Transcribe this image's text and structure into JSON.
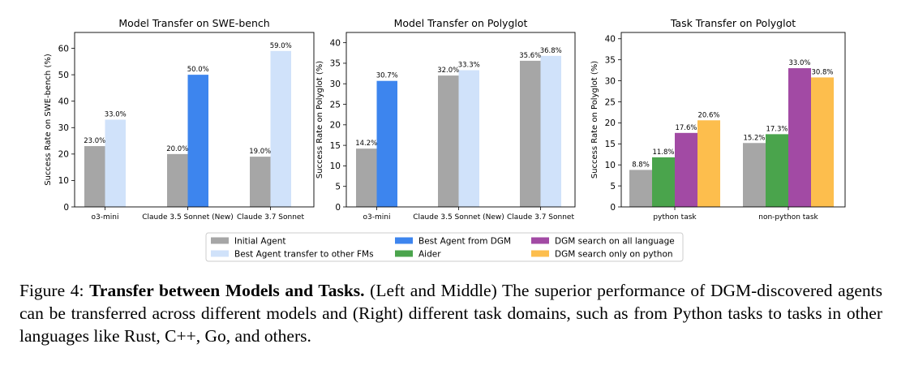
{
  "colors": {
    "initial_agent": "#a6a6a6",
    "best_agent_transfer": "#d0e2fa",
    "best_agent_dgm": "#3d85ee",
    "aider": "#4aa44c",
    "dgm_all_language": "#a24aa4",
    "dgm_python_only": "#fdbe4d"
  },
  "chart_data": [
    {
      "type": "bar",
      "title": "Model Transfer on SWE-bench",
      "ylabel": "Success Rate on SWE-bench (%)",
      "ylim": [
        0,
        66
      ],
      "yticks": [
        "0",
        "10",
        "20",
        "30",
        "40",
        "50",
        "60"
      ],
      "categories": [
        "o3-mini",
        "Claude 3.5 Sonnet (New)",
        "Claude 3.7 Sonnet"
      ],
      "series": [
        {
          "name": "Initial Agent",
          "values": [
            23.0,
            20.0,
            19.0
          ],
          "labels": [
            "23.0%",
            "20.0%",
            "19.0%"
          ]
        },
        {
          "name": "Best Agent transfer to other FMs / Best Agent from DGM",
          "values": [
            33.0,
            50.0,
            59.0
          ],
          "labels": [
            "33.0%",
            "50.0%",
            "59.0%"
          ]
        }
      ],
      "second_bar_colors": [
        "best_agent_transfer",
        "best_agent_dgm",
        "best_agent_transfer"
      ]
    },
    {
      "type": "bar",
      "title": "Model Transfer on Polyglot",
      "ylabel": "Success Rate on Polyglot (%)",
      "ylim": [
        0,
        42.5
      ],
      "yticks": [
        "0",
        "5",
        "10",
        "15",
        "20",
        "25",
        "30",
        "35",
        "40"
      ],
      "categories": [
        "o3-mini",
        "Claude 3.5 Sonnet (New)",
        "Claude 3.7 Sonnet"
      ],
      "series": [
        {
          "name": "Initial Agent",
          "values": [
            14.2,
            32.0,
            35.6
          ],
          "labels": [
            "14.2%",
            "32.0%",
            "35.6%"
          ]
        },
        {
          "name": "Best Agent transfer to other FMs / Best Agent from DGM",
          "values": [
            30.7,
            33.3,
            36.8
          ],
          "labels": [
            "30.7%",
            "33.3%",
            "36.8%"
          ]
        }
      ],
      "second_bar_colors": [
        "best_agent_dgm",
        "best_agent_transfer",
        "best_agent_transfer"
      ]
    },
    {
      "type": "bar",
      "title": "Task Transfer on Polyglot",
      "ylabel": "Success Rate on Polyglot (%)",
      "ylim": [
        0,
        41.5
      ],
      "yticks": [
        "0",
        "5",
        "10",
        "15",
        "20",
        "25",
        "30",
        "35",
        "40"
      ],
      "categories": [
        "python task",
        "non-python task"
      ],
      "series": [
        {
          "name": "Initial Agent",
          "values": [
            8.8,
            15.2
          ],
          "labels": [
            "8.8%",
            "15.2%"
          ]
        },
        {
          "name": "Aider",
          "values": [
            11.8,
            17.3
          ],
          "labels": [
            "11.8%",
            "17.3%"
          ]
        },
        {
          "name": "DGM search on all language",
          "values": [
            17.6,
            33.0
          ],
          "labels": [
            "17.6%",
            "33.0%"
          ]
        },
        {
          "name": "DGM search only on python",
          "values": [
            20.6,
            30.8
          ],
          "labels": [
            "20.6%",
            "30.8%"
          ]
        }
      ],
      "series_colors": [
        "initial_agent",
        "aider",
        "dgm_all_language",
        "dgm_python_only"
      ]
    }
  ],
  "legend": [
    {
      "label": "Initial Agent",
      "color": "initial_agent"
    },
    {
      "label": "Best Agent transfer to other FMs",
      "color": "best_agent_transfer"
    },
    {
      "label": "Best Agent from DGM",
      "color": "best_agent_dgm"
    },
    {
      "label": "Aider",
      "color": "aider"
    },
    {
      "label": "DGM search on all language",
      "color": "dgm_all_language"
    },
    {
      "label": "DGM search only on python",
      "color": "dgm_python_only"
    }
  ],
  "caption": {
    "prefix": "Figure 4: ",
    "bold": "Transfer between Models and Tasks.",
    "text": " (Left and Middle) The superior performance of DGM-discovered agents can be transferred across different models and (Right) different task domains, such as from Python tasks to tasks in other languages like Rust, C++, Go, and others."
  }
}
